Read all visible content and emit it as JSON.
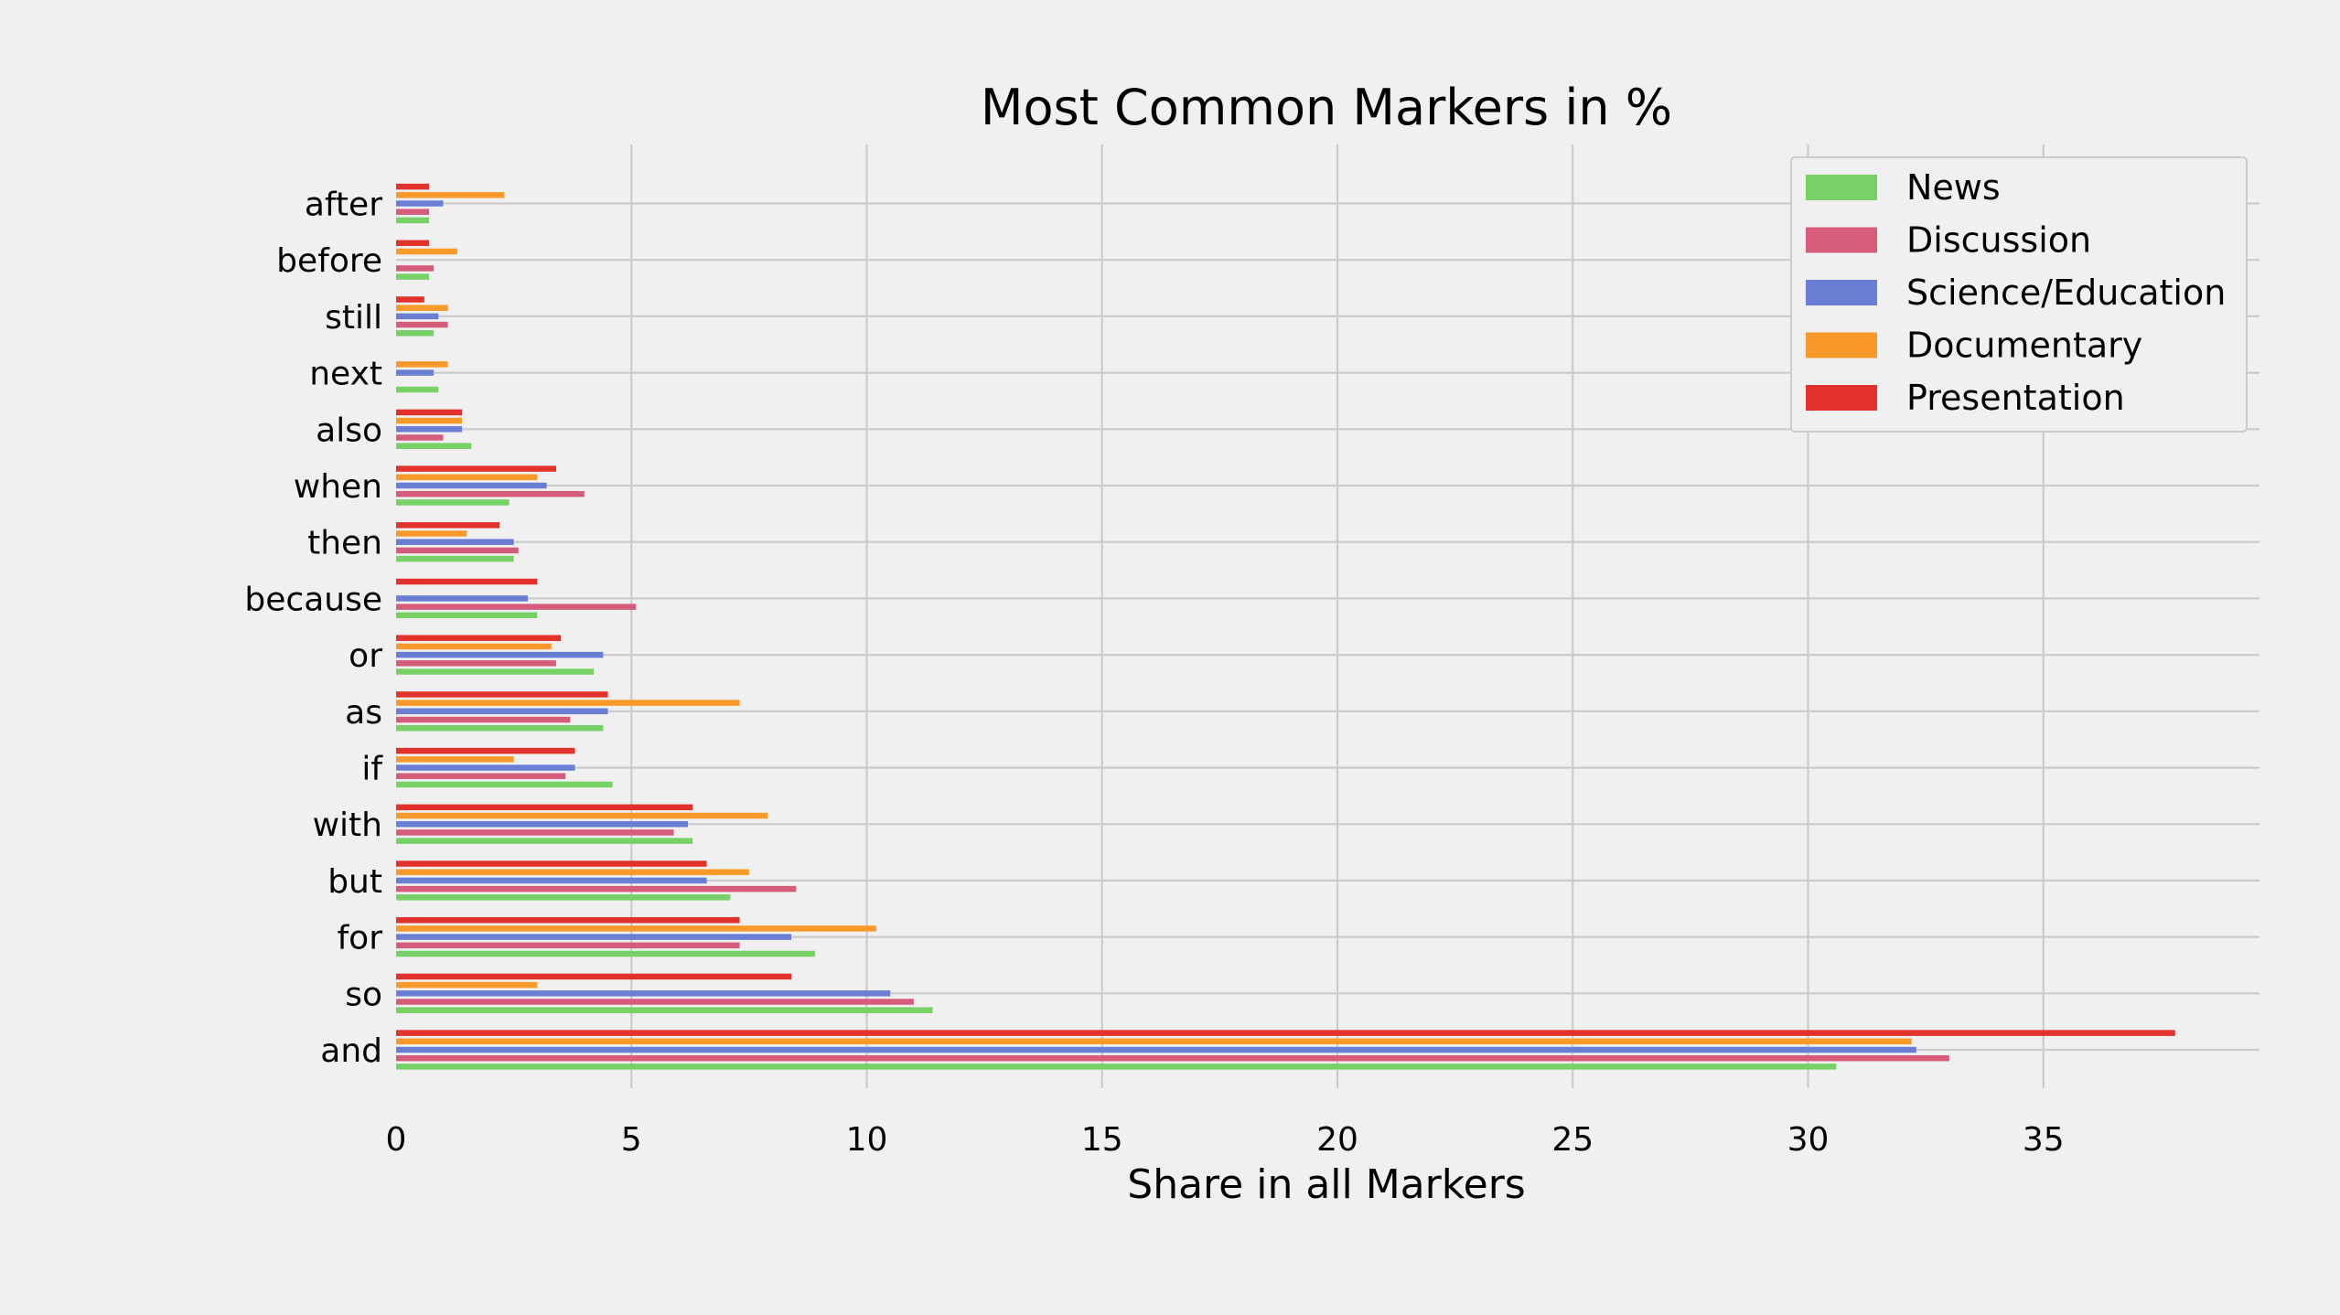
{
  "chart_data": {
    "type": "bar",
    "orientation": "horizontal",
    "title": "Most Common Markers in %",
    "xlabel": "Share in all Markers",
    "ylabel": "",
    "xlim": [
      0,
      39.7
    ],
    "xticks": [
      0,
      5,
      10,
      15,
      20,
      25,
      30,
      35
    ],
    "grid": true,
    "legend_position": "top-right",
    "categories": [
      "and",
      "so",
      "for",
      "but",
      "with",
      "if",
      "as",
      "or",
      "because",
      "then",
      "when",
      "also",
      "next",
      "still",
      "before",
      "after"
    ],
    "series": [
      {
        "name": "News",
        "color": "#77d166",
        "values": [
          30.6,
          11.4,
          8.9,
          7.1,
          6.3,
          4.6,
          4.4,
          4.2,
          3.0,
          2.5,
          2.4,
          1.6,
          0.9,
          0.8,
          0.7,
          0.7
        ]
      },
      {
        "name": "Discussion",
        "color": "#d55c7a",
        "values": [
          33.0,
          11.0,
          7.3,
          8.5,
          5.9,
          3.6,
          3.7,
          3.4,
          5.1,
          2.6,
          4.0,
          1.0,
          0.0,
          1.1,
          0.8,
          0.7
        ]
      },
      {
        "name": "Science/Education",
        "color": "#6a7fd4",
        "values": [
          32.3,
          10.5,
          8.4,
          6.6,
          6.2,
          3.8,
          4.5,
          4.4,
          2.8,
          2.5,
          3.2,
          1.4,
          0.8,
          0.9,
          0.0,
          1.0
        ]
      },
      {
        "name": "Documentary",
        "color": "#f9992a",
        "values": [
          32.2,
          3.0,
          10.2,
          7.5,
          7.9,
          2.5,
          7.3,
          3.3,
          0.0,
          1.5,
          3.0,
          1.4,
          1.1,
          1.1,
          1.3,
          2.3
        ]
      },
      {
        "name": "Presentation",
        "color": "#e3312b",
        "values": [
          37.8,
          8.4,
          7.3,
          6.6,
          6.3,
          3.8,
          4.5,
          3.5,
          3.0,
          2.2,
          3.4,
          1.4,
          0.0,
          0.6,
          0.7,
          0.7
        ]
      }
    ]
  }
}
